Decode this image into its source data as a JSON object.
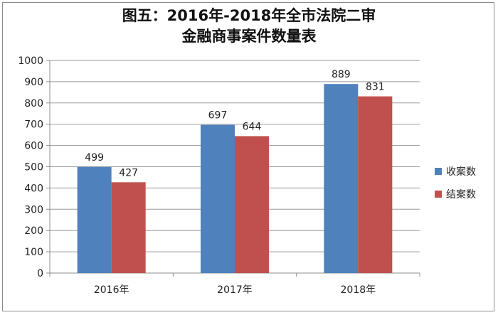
{
  "chart_data": {
    "type": "bar",
    "title_line1": "图五：2016年-2018年全市法院二审",
    "title_line2": "金融商事案件数量表",
    "categories": [
      "2016年",
      "2017年",
      "2018年"
    ],
    "series": [
      {
        "name": "收案数",
        "color": "#4f81bd",
        "values": [
          499,
          697,
          889
        ]
      },
      {
        "name": "结案数",
        "color": "#c0504d",
        "values": [
          427,
          644,
          831
        ]
      }
    ],
    "ylim": [
      0,
      1000
    ],
    "yticks": [
      0,
      100,
      200,
      300,
      400,
      500,
      600,
      700,
      800,
      900,
      1000
    ],
    "grid": true,
    "legend_position": "right",
    "show_data_labels": true
  }
}
